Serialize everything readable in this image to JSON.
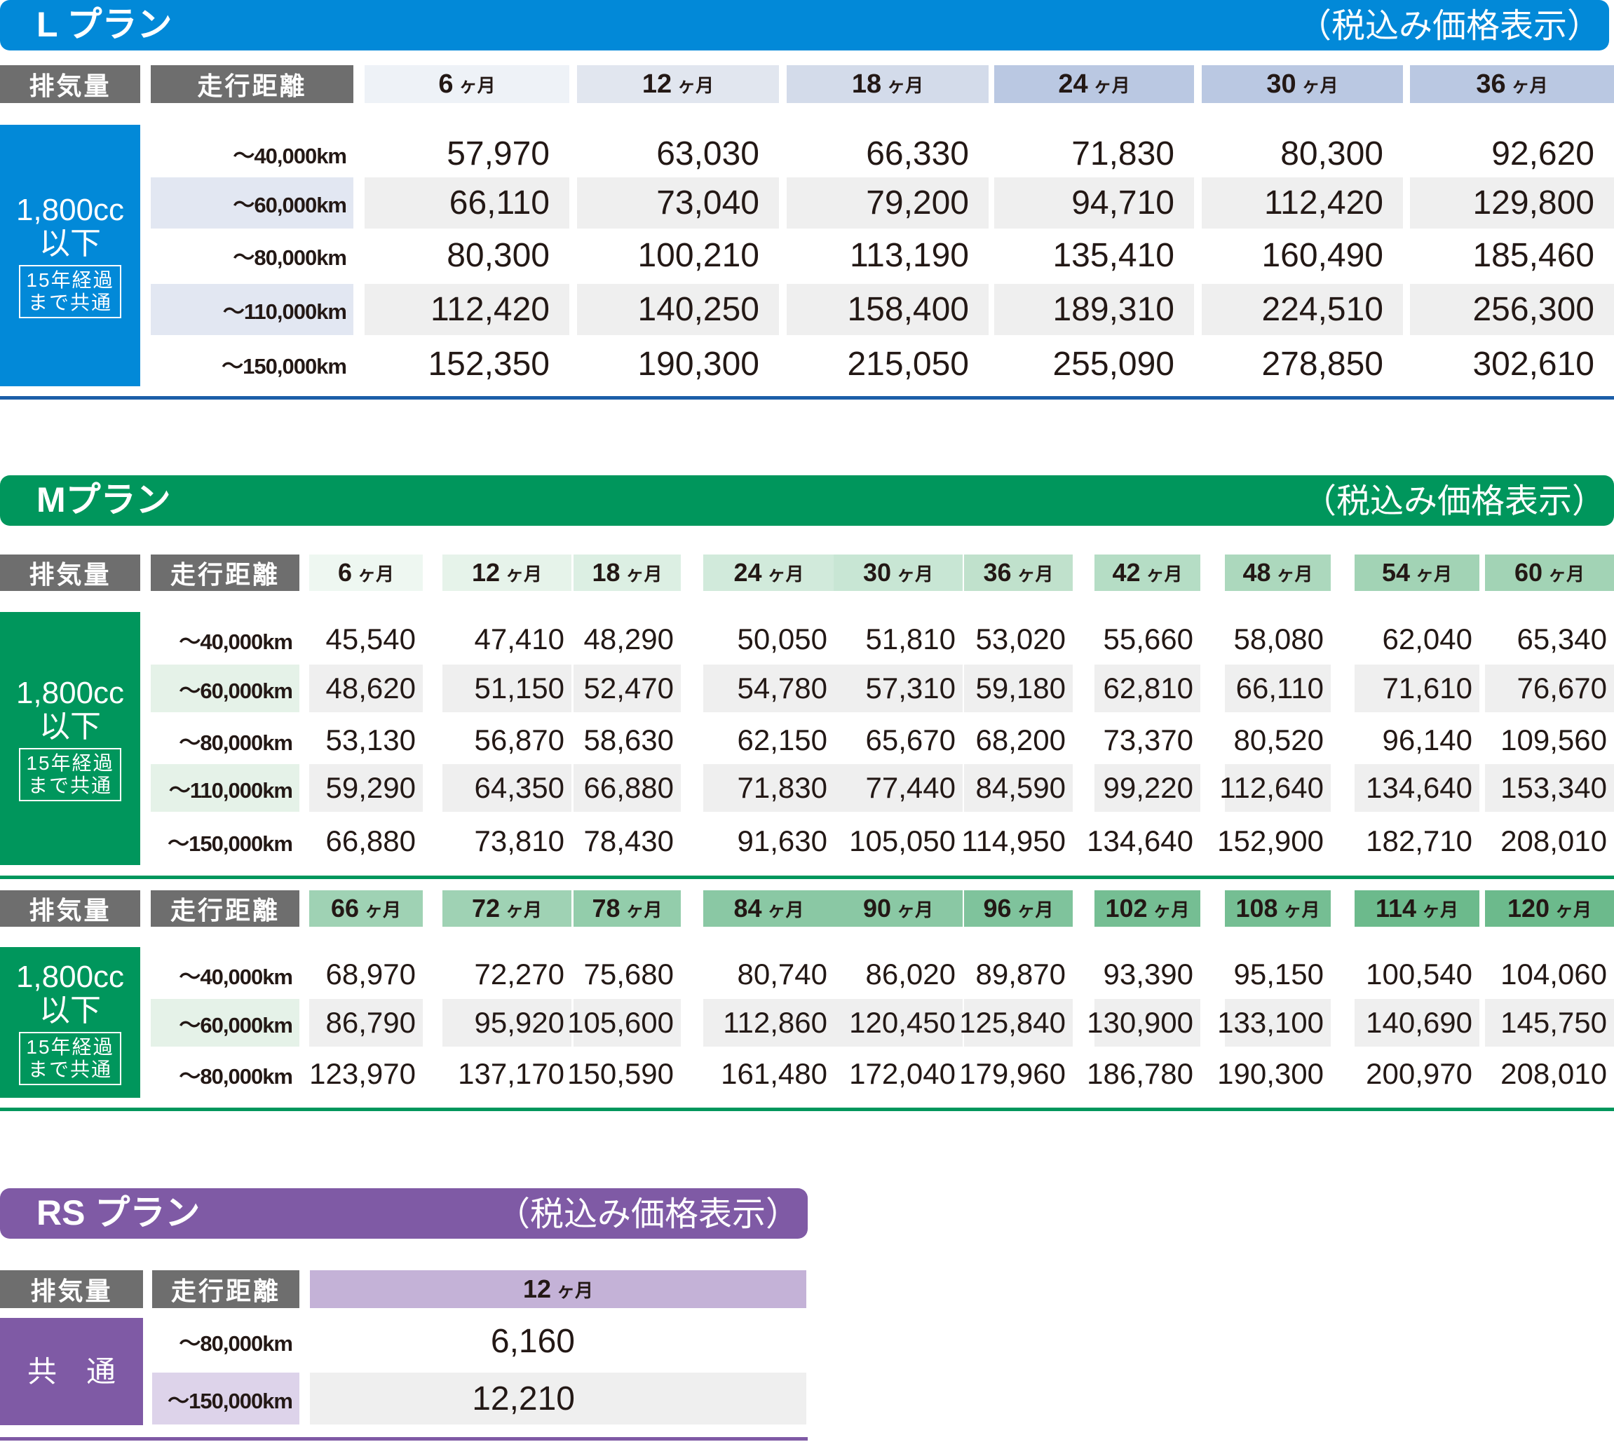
{
  "common": {
    "note": "（税込み価格表示）",
    "col_displacement": "排気量",
    "col_distance": "走行距離",
    "unit": "ヶ月"
  },
  "colors": {
    "l_plan": "#0289d8",
    "l_rule": "#1c5ea8",
    "m_plan": "#00965c",
    "rs_plan": "#7f5aa5",
    "header_gray": "#6e6e6e"
  },
  "l_plan": {
    "title": "L プラン",
    "months": [
      "6",
      "12",
      "18",
      "24",
      "30",
      "36"
    ],
    "label": {
      "cc": "1,800cc",
      "below": "以下",
      "years1": "15年経過",
      "years2": "まで共通"
    },
    "rows": [
      {
        "km": "～40,000km",
        "prices": [
          "57,970",
          "63,030",
          "66,330",
          "71,830",
          "80,300",
          "92,620"
        ]
      },
      {
        "km": "～60,000km",
        "prices": [
          "66,110",
          "73,040",
          "79,200",
          "94,710",
          "112,420",
          "129,800"
        ]
      },
      {
        "km": "～80,000km",
        "prices": [
          "80,300",
          "100,210",
          "113,190",
          "135,410",
          "160,490",
          "185,460"
        ]
      },
      {
        "km": "～110,000km",
        "prices": [
          "112,420",
          "140,250",
          "158,400",
          "189,310",
          "224,510",
          "256,300"
        ]
      },
      {
        "km": "～150,000km",
        "prices": [
          "152,350",
          "190,300",
          "215,050",
          "255,090",
          "278,850",
          "302,610"
        ]
      }
    ]
  },
  "m_plan": {
    "title": "Mプラン",
    "table1": {
      "months": [
        "6",
        "12",
        "18",
        "24",
        "30",
        "36",
        "42",
        "48",
        "54",
        "60"
      ],
      "label": {
        "cc": "1,800cc",
        "below": "以下",
        "years1": "15年経過",
        "years2": "まで共通"
      },
      "rows": [
        {
          "km": "～40,000km",
          "prices": [
            "45,540",
            "47,410",
            "48,290",
            "50,050",
            "51,810",
            "53,020",
            "55,660",
            "58,080",
            "62,040",
            "65,340"
          ]
        },
        {
          "km": "～60,000km",
          "prices": [
            "48,620",
            "51,150",
            "52,470",
            "54,780",
            "57,310",
            "59,180",
            "62,810",
            "66,110",
            "71,610",
            "76,670"
          ]
        },
        {
          "km": "～80,000km",
          "prices": [
            "53,130",
            "56,870",
            "58,630",
            "62,150",
            "65,670",
            "68,200",
            "73,370",
            "80,520",
            "96,140",
            "109,560"
          ]
        },
        {
          "km": "～110,000km",
          "prices": [
            "59,290",
            "64,350",
            "66,880",
            "71,830",
            "77,440",
            "84,590",
            "99,220",
            "112,640",
            "134,640",
            "153,340"
          ]
        },
        {
          "km": "～150,000km",
          "prices": [
            "66,880",
            "73,810",
            "78,430",
            "91,630",
            "105,050",
            "114,950",
            "134,640",
            "152,900",
            "182,710",
            "208,010"
          ]
        }
      ]
    },
    "table2": {
      "months": [
        "66",
        "72",
        "78",
        "84",
        "90",
        "96",
        "102",
        "108",
        "114",
        "120"
      ],
      "label": {
        "cc": "1,800cc",
        "below": "以下",
        "years1": "15年経過",
        "years2": "まで共通"
      },
      "rows": [
        {
          "km": "～40,000km",
          "prices": [
            "68,970",
            "72,270",
            "75,680",
            "80,740",
            "86,020",
            "89,870",
            "93,390",
            "95,150",
            "100,540",
            "104,060"
          ]
        },
        {
          "km": "～60,000km",
          "prices": [
            "86,790",
            "95,920",
            "105,600",
            "112,860",
            "120,450",
            "125,840",
            "130,900",
            "133,100",
            "140,690",
            "145,750"
          ]
        },
        {
          "km": "～80,000km",
          "prices": [
            "123,970",
            "137,170",
            "150,590",
            "161,480",
            "172,040",
            "179,960",
            "186,780",
            "190,300",
            "200,970",
            "208,010"
          ]
        }
      ]
    }
  },
  "rs_plan": {
    "title": "RS プラン",
    "months": [
      "12"
    ],
    "label": "共　通",
    "rows": [
      {
        "km": "～80,000km",
        "prices": [
          "6,160"
        ]
      },
      {
        "km": "～150,000km",
        "prices": [
          "12,210"
        ]
      }
    ]
  }
}
